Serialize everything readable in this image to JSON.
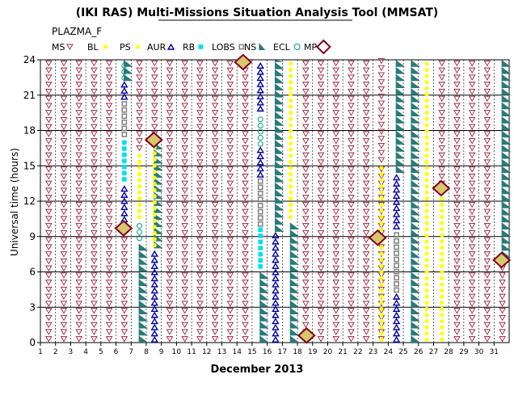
{
  "title": "(IKI RAS) Multi-Missions Situation Analysis Tool (MMSAT)",
  "chart_data": {
    "type": "scatter",
    "panel_label": "PLAZMA_F",
    "xlabel": "December 2013",
    "ylabel": "Universal time (hours)",
    "xlim": [
      1,
      32
    ],
    "ylim": [
      0,
      24
    ],
    "x_ticks": [
      "1",
      "2",
      "3",
      "4",
      "5",
      "6",
      "7",
      "8",
      "9",
      "10",
      "11",
      "12",
      "13",
      "14",
      "15",
      "16",
      "17",
      "18",
      "19",
      "20",
      "21",
      "22",
      "23",
      "24",
      "25",
      "26",
      "27",
      "28",
      "29",
      "30",
      "31"
    ],
    "y_ticks": [
      "0",
      "3",
      "6",
      "9",
      "12",
      "15",
      "18",
      "21",
      "24"
    ],
    "grid": true,
    "legend_position": "top",
    "legend": [
      {
        "key": "MS",
        "label": "MS",
        "color": "#a0203c",
        "symbol": "triangle-down"
      },
      {
        "key": "BL",
        "label": "BL",
        "color": "#ffff00",
        "symbol": "dot"
      },
      {
        "key": "PS",
        "label": "PS",
        "color": "#ffff00",
        "symbol": "dot"
      },
      {
        "key": "AUR",
        "label": "AUR",
        "color": "#0000a0",
        "symbol": "triangle-up"
      },
      {
        "key": "RB",
        "label": "RB",
        "color": "#00e0f0",
        "symbol": "square"
      },
      {
        "key": "LOBS",
        "label": "LOBS",
        "color": "#808080",
        "symbol": "square-open"
      },
      {
        "key": "NS",
        "label": "NS",
        "color": "#2a7a7a",
        "symbol": "wedge"
      },
      {
        "key": "ECL",
        "label": "ECL",
        "color": "#00a080",
        "symbol": "circle-open"
      },
      {
        "key": "MP",
        "label": "MP",
        "color": "#800020",
        "symbol": "diamond"
      }
    ],
    "columns": [
      {
        "day": 1,
        "segments": [
          {
            "type": "MS",
            "y0": 0,
            "y1": 24
          }
        ]
      },
      {
        "day": 2,
        "segments": [
          {
            "type": "MS",
            "y0": 0,
            "y1": 24
          }
        ]
      },
      {
        "day": 3,
        "segments": [
          {
            "type": "MS",
            "y0": 0,
            "y1": 24
          }
        ]
      },
      {
        "day": 4,
        "segments": [
          {
            "type": "MS",
            "y0": 0,
            "y1": 24
          }
        ]
      },
      {
        "day": 5,
        "segments": [
          {
            "type": "MS",
            "y0": 0,
            "y1": 24
          }
        ]
      },
      {
        "day": 6,
        "segments": [
          {
            "type": "MS",
            "y0": 0,
            "y1": 9.8
          },
          {
            "type": "AUR",
            "y0": 10.2,
            "y1": 13.2
          },
          {
            "type": "RB",
            "y0": 13.6,
            "y1": 17.2
          },
          {
            "type": "LOBS",
            "y0": 17.4,
            "y1": 20.4
          },
          {
            "type": "AUR",
            "y0": 20.6,
            "y1": 22.0
          },
          {
            "type": "ECL",
            "y0": 22.2,
            "y1": 23.6
          },
          {
            "type": "NS",
            "y0": 22.2,
            "y1": 24
          }
        ]
      },
      {
        "day": 7,
        "segments": [
          {
            "type": "NS",
            "y0": 0,
            "y1": 8.4
          },
          {
            "type": "ECL",
            "y0": 8.6,
            "y1": 10.2
          },
          {
            "type": "BL",
            "y0": 10.4,
            "y1": 16.0
          },
          {
            "type": "MS",
            "y0": 16.2,
            "y1": 24
          }
        ]
      },
      {
        "day": 8,
        "segments": [
          {
            "type": "AUR",
            "y0": 0,
            "y1": 7.8
          },
          {
            "type": "NS",
            "y0": 8.0,
            "y1": 17.0
          },
          {
            "type": "BL",
            "y0": 8.0,
            "y1": 16.6
          },
          {
            "type": "MS",
            "y0": 17.4,
            "y1": 24
          }
        ]
      },
      {
        "day": 9,
        "segments": [
          {
            "type": "MS",
            "y0": 0,
            "y1": 24
          }
        ]
      },
      {
        "day": 10,
        "segments": [
          {
            "type": "MS",
            "y0": 0,
            "y1": 24
          }
        ]
      },
      {
        "day": 11,
        "segments": [
          {
            "type": "MS",
            "y0": 0,
            "y1": 24
          }
        ]
      },
      {
        "day": 12,
        "segments": [
          {
            "type": "MS",
            "y0": 0,
            "y1": 24
          }
        ]
      },
      {
        "day": 13,
        "segments": [
          {
            "type": "MS",
            "y0": 0,
            "y1": 24
          }
        ]
      },
      {
        "day": 14,
        "segments": [
          {
            "type": "MS",
            "y0": 0,
            "y1": 24
          }
        ]
      },
      {
        "day": 15,
        "segments": [
          {
            "type": "NS",
            "y0": 0,
            "y1": 6.0
          },
          {
            "type": "RB",
            "y0": 6.2,
            "y1": 9.6
          },
          {
            "type": "LOBS",
            "y0": 9.8,
            "y1": 13.8
          },
          {
            "type": "AUR",
            "y0": 14.0,
            "y1": 16.4
          },
          {
            "type": "ECL",
            "y0": 16.6,
            "y1": 19.4
          },
          {
            "type": "AUR",
            "y0": 19.6,
            "y1": 24
          }
        ]
      },
      {
        "day": 16,
        "segments": [
          {
            "type": "AUR",
            "y0": 0,
            "y1": 9.2
          },
          {
            "type": "NS",
            "y0": 9.4,
            "y1": 24
          }
        ]
      },
      {
        "day": 17,
        "segments": [
          {
            "type": "NS",
            "y0": 0,
            "y1": 10.2
          },
          {
            "type": "BL",
            "y0": 10.4,
            "y1": 24
          }
        ]
      },
      {
        "day": 18,
        "segments": [
          {
            "type": "MS",
            "y0": 0,
            "y1": 24
          }
        ]
      },
      {
        "day": 19,
        "segments": [
          {
            "type": "MS",
            "y0": 0,
            "y1": 24
          }
        ]
      },
      {
        "day": 20,
        "segments": [
          {
            "type": "MS",
            "y0": 0,
            "y1": 24
          }
        ]
      },
      {
        "day": 21,
        "segments": [
          {
            "type": "MS",
            "y0": 0,
            "y1": 24
          }
        ]
      },
      {
        "day": 22,
        "segments": [
          {
            "type": "MS",
            "y0": 0,
            "y1": 24
          }
        ]
      },
      {
        "day": 23,
        "segments": [
          {
            "type": "MS",
            "y0": 0,
            "y1": 15.2
          },
          {
            "type": "BL",
            "y0": 0,
            "y1": 15.0
          },
          {
            "type": "MS",
            "y0": 15.2,
            "y1": 24
          }
        ]
      },
      {
        "day": 24,
        "segments": [
          {
            "type": "AUR",
            "y0": 0,
            "y1": 4.0
          },
          {
            "type": "LOBS",
            "y0": 4.2,
            "y1": 9.4
          },
          {
            "type": "AUR",
            "y0": 9.6,
            "y1": 14.2
          },
          {
            "type": "NS",
            "y0": 14.4,
            "y1": 24
          }
        ]
      },
      {
        "day": 25,
        "segments": [
          {
            "type": "NS",
            "y0": 0,
            "y1": 24
          }
        ]
      },
      {
        "day": 26,
        "segments": [
          {
            "type": "BL",
            "y0": 0,
            "y1": 24
          }
        ]
      },
      {
        "day": 27,
        "segments": [
          {
            "type": "BL",
            "y0": 0,
            "y1": 13.0
          },
          {
            "type": "MS",
            "y0": 13.2,
            "y1": 24
          }
        ]
      },
      {
        "day": 28,
        "segments": [
          {
            "type": "MS",
            "y0": 0,
            "y1": 24
          }
        ]
      },
      {
        "day": 29,
        "segments": [
          {
            "type": "MS",
            "y0": 0,
            "y1": 24
          }
        ]
      },
      {
        "day": 30,
        "segments": [
          {
            "type": "MS",
            "y0": 0,
            "y1": 24
          }
        ]
      },
      {
        "day": 31,
        "segments": [
          {
            "type": "MS",
            "y0": 0,
            "y1": 6.8
          },
          {
            "type": "NS",
            "y0": 7.2,
            "y1": 24
          }
        ]
      }
    ],
    "mp_events": [
      {
        "day": 6.5,
        "hour": 9.7
      },
      {
        "day": 8.5,
        "hour": 17.2
      },
      {
        "day": 14.4,
        "hour": 23.8
      },
      {
        "day": 18.6,
        "hour": 0.6
      },
      {
        "day": 23.3,
        "hour": 8.9
      },
      {
        "day": 27.5,
        "hour": 13.1
      },
      {
        "day": 31.5,
        "hour": 7.0
      }
    ]
  }
}
